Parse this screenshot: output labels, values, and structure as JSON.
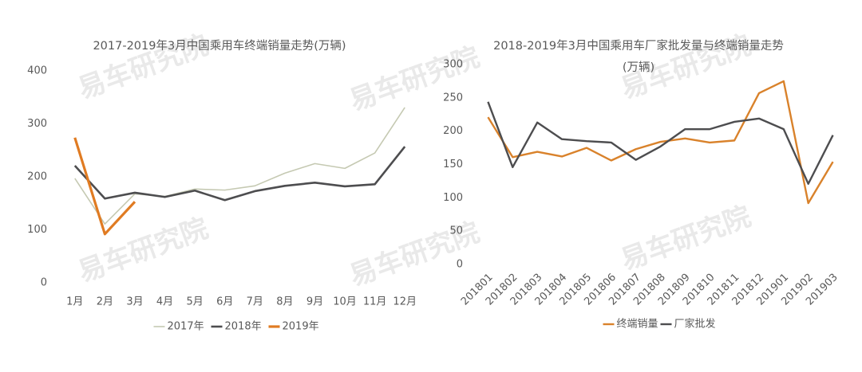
{
  "chart_data": [
    {
      "type": "line",
      "title": "2017-2019年3月中国乘用车终端销量走势(万辆)",
      "watermark": "易车研究院",
      "categories": [
        "1月",
        "2月",
        "3月",
        "4月",
        "5月",
        "6月",
        "7月",
        "8月",
        "9月",
        "10月",
        "11月",
        "12月"
      ],
      "series": [
        {
          "name": "2017年",
          "color": "#c5c9b2",
          "values": [
            197,
            111,
            168,
            163,
            177,
            175,
            183,
            207,
            225,
            216,
            245,
            331
          ]
        },
        {
          "name": "2018年",
          "color": "#4d4d4f",
          "values": [
            221,
            159,
            170,
            162,
            174,
            156,
            173,
            183,
            189,
            182,
            186,
            257
          ]
        },
        {
          "name": "2019年",
          "color": "#e07b22",
          "values": [
            274,
            92,
            153,
            null,
            null,
            null,
            null,
            null,
            null,
            null,
            null,
            null
          ]
        }
      ],
      "ylim": [
        0,
        400
      ],
      "yticks": [
        0,
        100,
        200,
        300,
        400
      ],
      "grid": false,
      "legend": "bottom"
    },
    {
      "type": "line",
      "title": "2018-2019年3月中国乘用车厂家批发量与终端销量走势",
      "subtitle": "(万辆)",
      "watermark": "易车研究院",
      "categories": [
        "201801",
        "201802",
        "201803",
        "201804",
        "201805",
        "201806",
        "201807",
        "201808",
        "201809",
        "201810",
        "201811",
        "201812",
        "201901",
        "201902",
        "201903"
      ],
      "series": [
        {
          "name": "终端销量",
          "color": "#d9822b",
          "values": [
            221,
            161,
            169,
            162,
            175,
            156,
            173,
            184,
            189,
            183,
            186,
            257,
            275,
            92,
            154
          ]
        },
        {
          "name": "厂家批发",
          "color": "#4d4d4f",
          "values": [
            244,
            146,
            213,
            188,
            185,
            183,
            157,
            177,
            203,
            203,
            214,
            219,
            203,
            121,
            194
          ]
        }
      ],
      "ylim": [
        0,
        300
      ],
      "yticks": [
        0,
        50,
        100,
        150,
        200,
        250,
        300
      ],
      "grid": false,
      "legend": "bottom"
    }
  ]
}
